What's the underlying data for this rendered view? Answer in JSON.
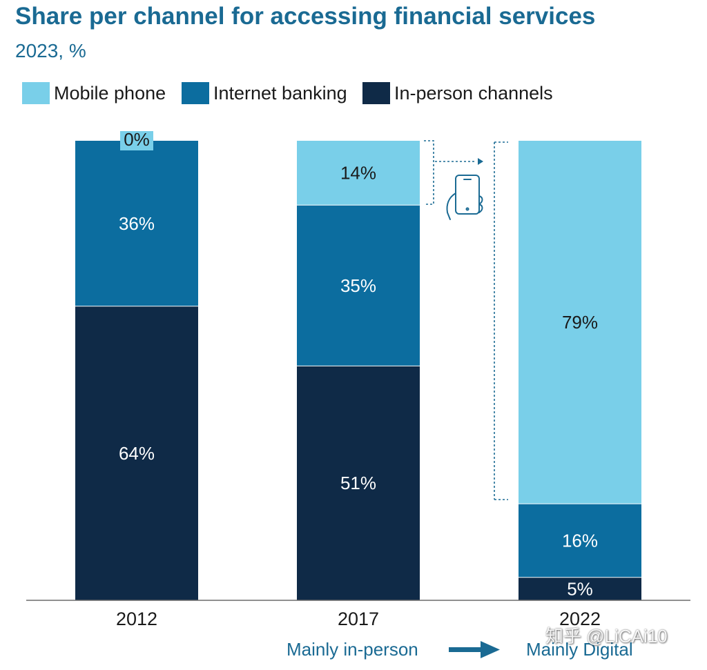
{
  "chart_data": {
    "type": "bar",
    "stacked": true,
    "title": "Share per channel for accessing financial services",
    "subtitle": "2023, %",
    "categories": [
      "2012",
      "2017",
      "2022"
    ],
    "series": [
      {
        "name": "In-person channels",
        "values": [
          64,
          51,
          5
        ],
        "labels": [
          "64%",
          "51%",
          "5%"
        ],
        "color": "#0f2a47",
        "label_color": "#ffffff"
      },
      {
        "name": "Internet banking",
        "values": [
          36,
          35,
          16
        ],
        "labels": [
          "36%",
          "35%",
          "16%"
        ],
        "color": "#0c6d9f",
        "label_color": "#ffffff"
      },
      {
        "name": "Mobile phone",
        "values": [
          0,
          14,
          79
        ],
        "labels": [
          "0%",
          "14%",
          "79%"
        ],
        "color": "#79cfe9",
        "label_color": "#1a1a1a"
      }
    ],
    "ylim": [
      0,
      100
    ],
    "legend": {
      "placement": "top-left",
      "order": [
        "Mobile phone",
        "Internet banking",
        "In-person channels"
      ]
    },
    "annotations": {
      "footer_left": "Mainly in-person",
      "footer_right": "Mainly Digital",
      "arrow_icon": "right-arrow-icon",
      "phone_icon": "mobile-phone-icon",
      "accent_color": "#1a6a93"
    }
  },
  "watermark": {
    "text": "知乎 @LiCAi10"
  }
}
